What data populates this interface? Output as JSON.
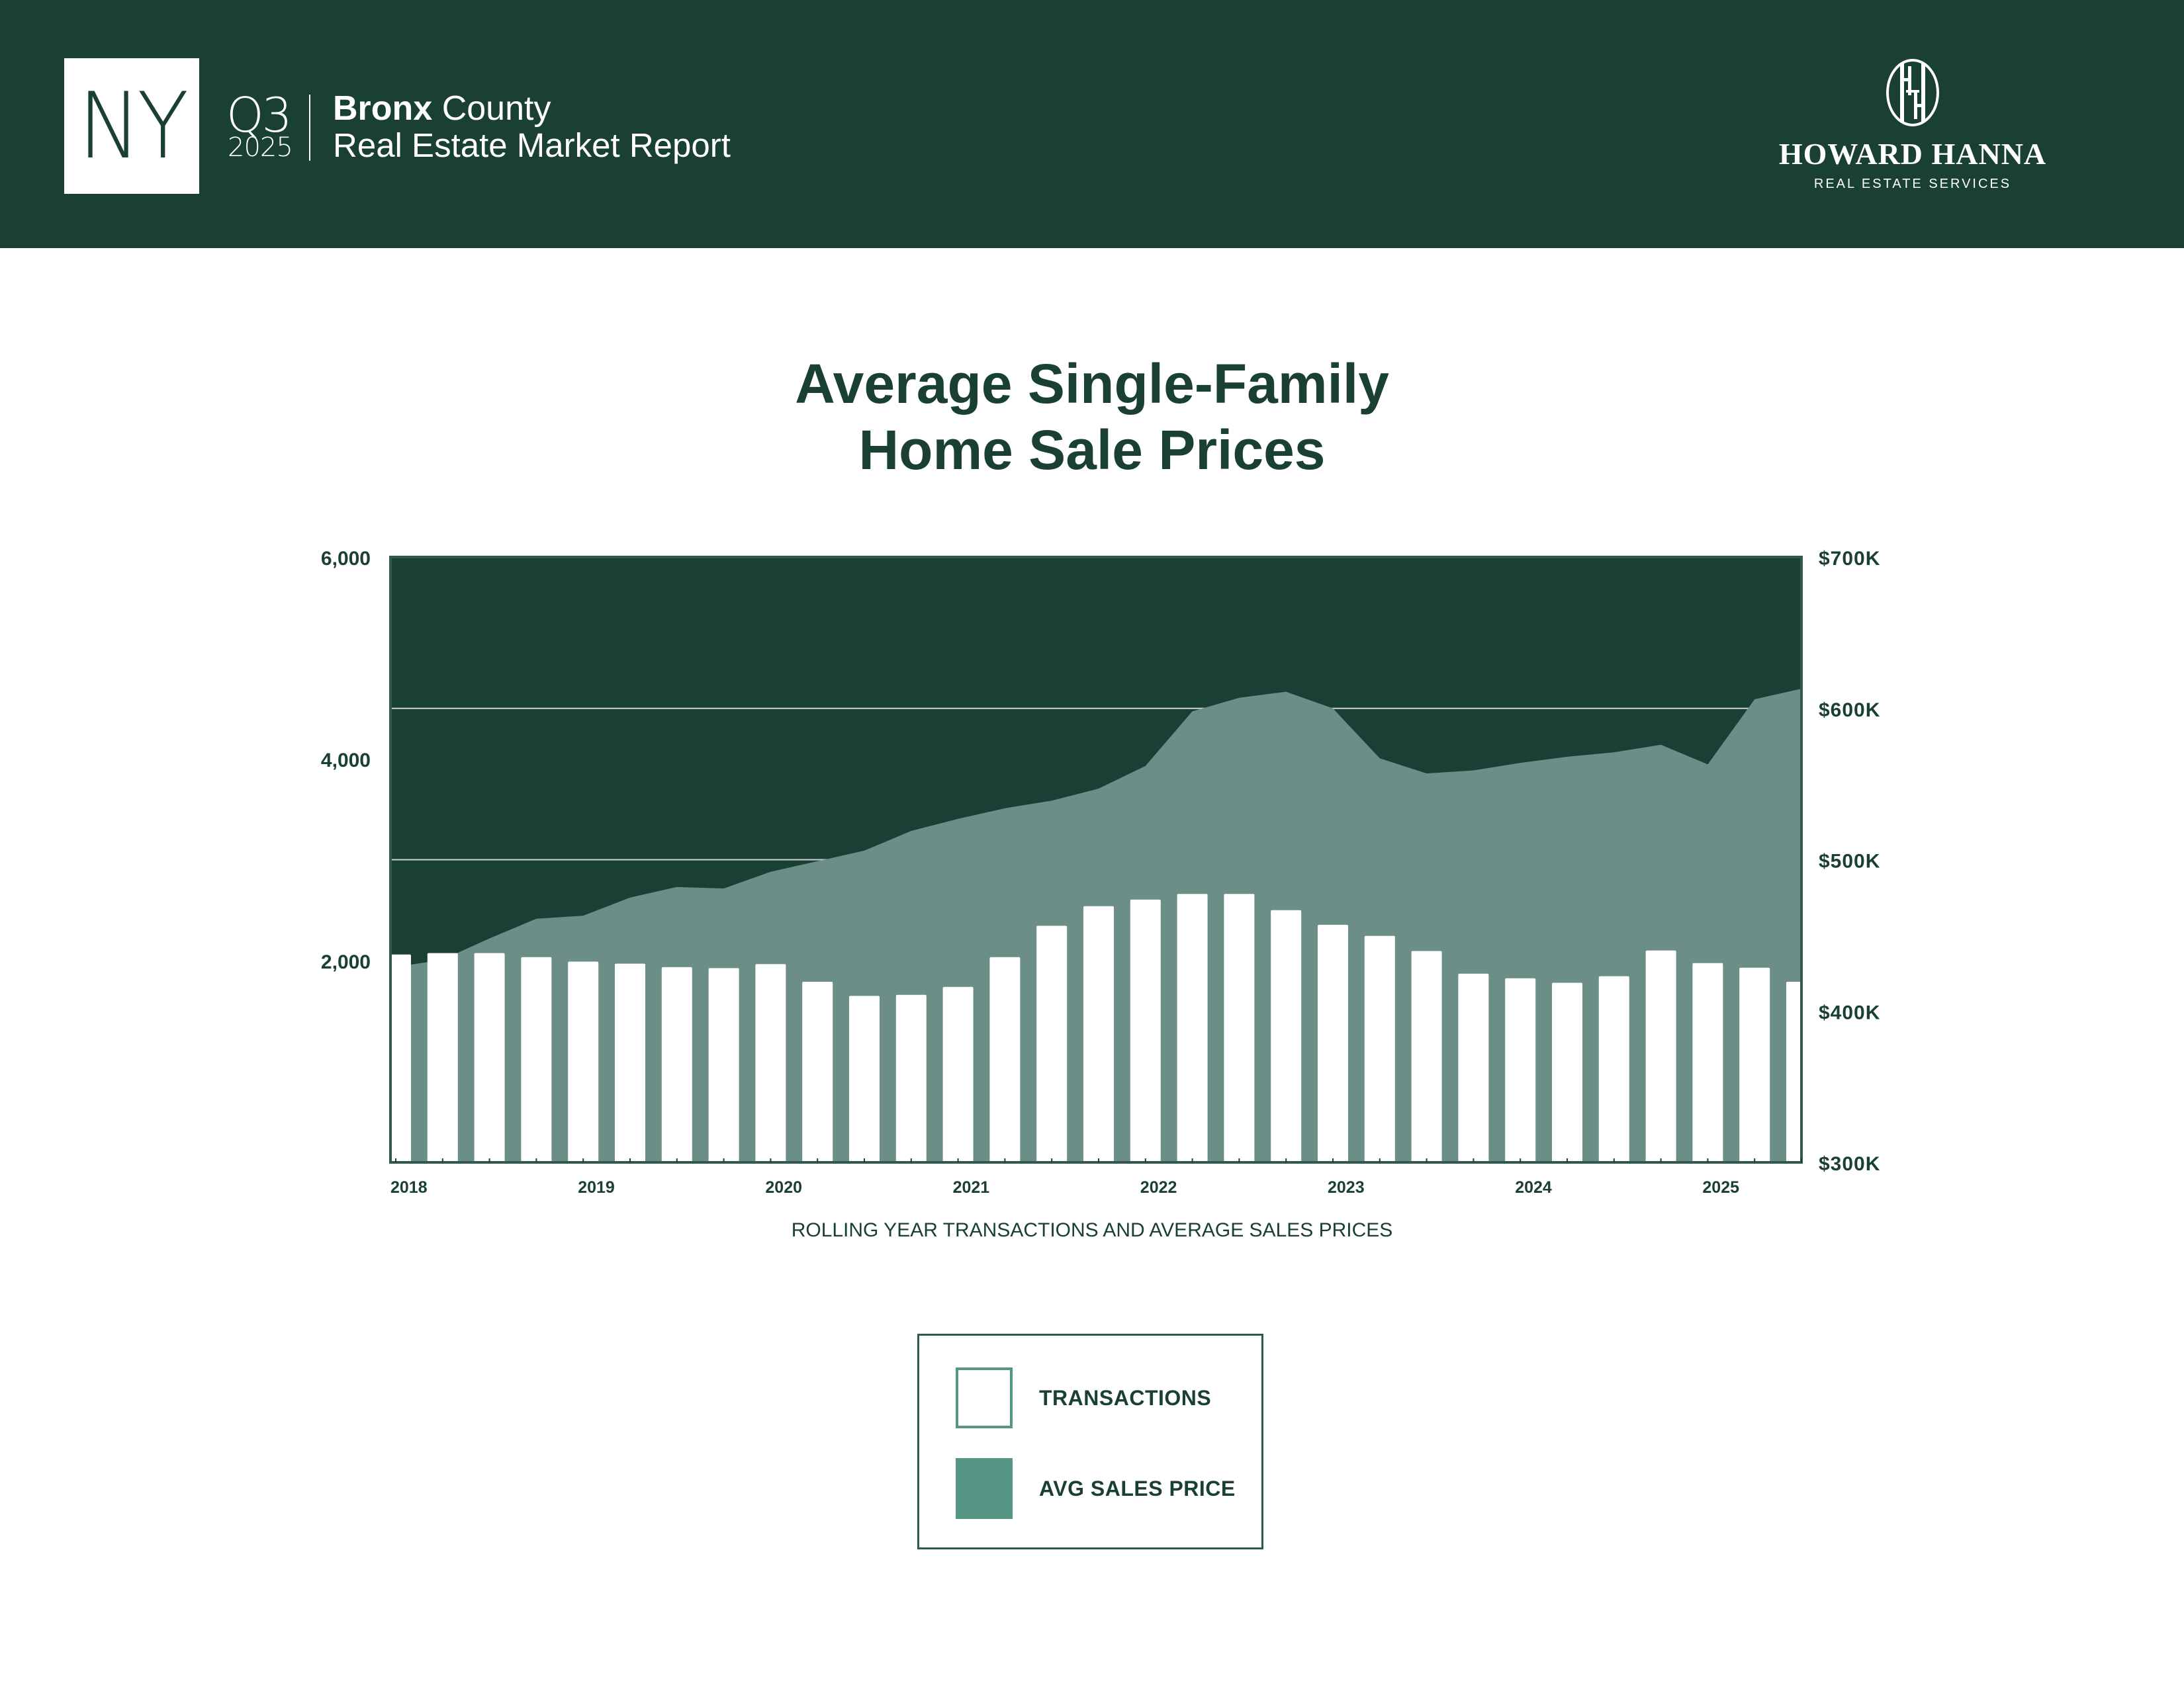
{
  "header": {
    "state_badge": "NY",
    "quarter": "Q3",
    "year": "2025",
    "county_bold": "Bronx",
    "county_rest": " County",
    "report_title": "Real Estate Market Report",
    "brand_name": "HOWARD HANNA",
    "brand_tagline": "REAL ESTATE SERVICES"
  },
  "title": {
    "line1": "Average Single-Family",
    "line2": "Home Sale Prices"
  },
  "caption": "ROLLING YEAR TRANSACTIONS AND AVERAGE SALES PRICES",
  "legend": {
    "items": [
      {
        "label": "TRANSACTIONS",
        "swatch": "outline"
      },
      {
        "label": "AVG SALES PRICE",
        "swatch": "fill"
      }
    ]
  },
  "colors": {
    "brand_dark": "#1a4036",
    "price_area": "#6b8e87",
    "legend_accent": "#579585",
    "bar": "#ffffff",
    "gridline": "#c9d3cf"
  },
  "chart_data": {
    "type": "bar",
    "combo": "bar + area (dual axis)",
    "title": "Average Single-Family Home Sale Prices",
    "xlabel": "ROLLING YEAR TRANSACTIONS AND AVERAGE SALES PRICES",
    "x_tick_labels": [
      "2018",
      "2019",
      "2020",
      "2021",
      "2022",
      "2023",
      "2024",
      "2025"
    ],
    "x_tick_label_every": 4,
    "grid": true,
    "legend_placement": "bottom",
    "left_axis": {
      "label": "Transactions",
      "ylim": [
        0,
        6000
      ],
      "tick_labels": [
        "6,000",
        "4,000",
        "2,000"
      ],
      "tick_values": [
        6000,
        4000,
        2000
      ]
    },
    "right_axis": {
      "label": "Average Sales Price",
      "ylim": [
        300,
        700
      ],
      "units": "thousands USD",
      "tick_labels": [
        "$700K",
        "$600K",
        "$500K",
        "$400K",
        "$300K"
      ],
      "tick_values": [
        700,
        600,
        500,
        400,
        300
      ]
    },
    "gridlines_right_axis": [
      600,
      500
    ],
    "series": [
      {
        "name": "TRANSACTIONS",
        "type": "bar",
        "axis": "left",
        "values": [
          2060,
          2075,
          2075,
          2035,
          1990,
          1970,
          1935,
          1925,
          1965,
          1790,
          1650,
          1660,
          1740,
          2035,
          2345,
          2540,
          2605,
          2660,
          2660,
          2500,
          2355,
          2245,
          2095,
          1870,
          1825,
          1780,
          1845,
          2100,
          1975,
          1930,
          1790
        ]
      },
      {
        "name": "AVG SALES PRICE",
        "type": "area",
        "axis": "right",
        "values": [
          429,
          434,
          448,
          461,
          463,
          475,
          482,
          481,
          492,
          499,
          506,
          519,
          527,
          534,
          539,
          547,
          562,
          598,
          607,
          611,
          600,
          567,
          557,
          559,
          564,
          568,
          571,
          576,
          563,
          606,
          613
        ]
      }
    ]
  }
}
